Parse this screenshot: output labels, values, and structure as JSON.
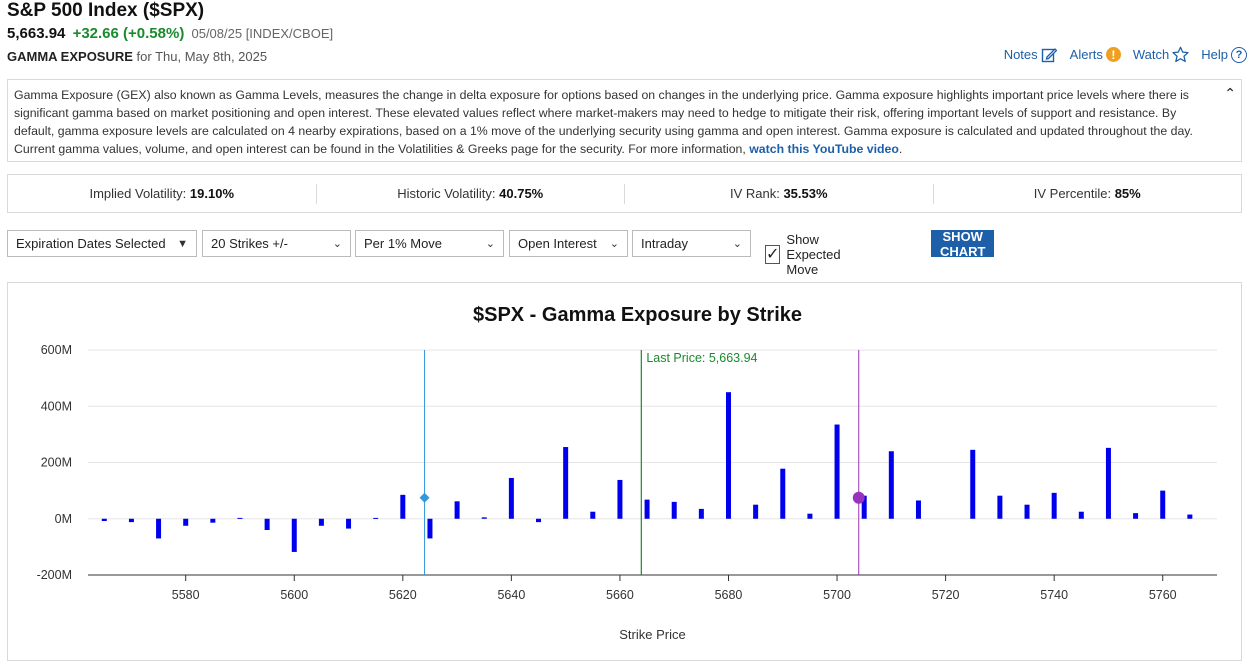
{
  "header": {
    "title": "S&P 500 Index ($SPX)",
    "price": "5,663.94",
    "change": "+32.66 (+0.58%)",
    "meta": "05/08/25 [INDEX/CBOE]",
    "section_label": "GAMMA EXPOSURE",
    "section_date": "for Thu, May 8th, 2025",
    "links": {
      "notes": "Notes",
      "alerts": "Alerts",
      "watch": "Watch",
      "help": "Help"
    }
  },
  "info": {
    "text": "Gamma Exposure (GEX) also known as Gamma Levels, measures the change in delta exposure for options based on changes in the underlying price. Gamma exposure highlights important price levels where there is significant gamma based on market positioning and open interest. These elevated values reflect where market-makers may need to hedge to mitigate their risk, offering important levels of support and resistance. By default, gamma exposure levels are calculated on 4 nearby expirations, based on a 1% move of the underlying security using gamma and open interest. Gamma exposure is calculated and updated throughout the day. Current gamma values, volume, and open interest can be found in the Volatilities & Greeks page for the security. For more information, ",
    "link_text": "watch this YouTube video",
    "end": "."
  },
  "stats": {
    "iv_label": "Implied Volatility:",
    "iv_value": "19.10%",
    "hv_label": "Historic Volatility:",
    "hv_value": "40.75%",
    "ivr_label": "IV Rank:",
    "ivr_value": "35.53%",
    "ivp_label": "IV Percentile:",
    "ivp_value": "85%"
  },
  "controls": {
    "expiration": "Expiration Dates Selected",
    "strikes": "20 Strikes +/-",
    "move": "Per 1% Move",
    "basis": "Open Interest",
    "timeframe": "Intraday",
    "show_expected_move": "Show Expected Move",
    "show_expected_move_checked": true,
    "show_chart": "SHOW CHART"
  },
  "chart_data": {
    "type": "bar",
    "title": "$SPX - Gamma Exposure by Strike",
    "xlabel": "Strike Price",
    "ylabel": "",
    "xlim": [
      5562,
      5770
    ],
    "ylim": [
      -200,
      600
    ],
    "yticks": [
      -200,
      0,
      200,
      400,
      600
    ],
    "ytick_labels": [
      "-200M",
      "0M",
      "200M",
      "400M",
      "600M"
    ],
    "xticks": [
      5580,
      5600,
      5620,
      5640,
      5660,
      5680,
      5700,
      5720,
      5740,
      5760
    ],
    "bar_color": "#0000ee",
    "series": [
      {
        "strikes": [
          5565,
          5570,
          5575,
          5580,
          5585,
          5590,
          5595,
          5600,
          5605,
          5610,
          5615,
          5620,
          5625,
          5630,
          5635,
          5640,
          5645,
          5650,
          5655,
          5660,
          5665,
          5670,
          5675,
          5680,
          5685,
          5690,
          5695,
          5700,
          5705,
          5710,
          5715,
          5725,
          5730,
          5735,
          5740,
          5745,
          5750,
          5755,
          5760,
          5765
        ],
        "values": [
          -8,
          -12,
          -70,
          -25,
          -14,
          3,
          -40,
          -118,
          -25,
          -35,
          3,
          85,
          -70,
          62,
          5,
          145,
          -12,
          255,
          25,
          138,
          68,
          60,
          35,
          450,
          50,
          178,
          18,
          335,
          82,
          240,
          65,
          245,
          82,
          50,
          92,
          25,
          252,
          20,
          100,
          15
        ]
      }
    ],
    "last_price": {
      "label": "Last Price: 5,663.94",
      "value": 5663.94,
      "color": "#1a8a2e"
    },
    "expected_move_low": {
      "value": 5624,
      "color": "#3399dd"
    },
    "expected_move_high": {
      "value": 5704,
      "color": "#9933bb"
    }
  }
}
